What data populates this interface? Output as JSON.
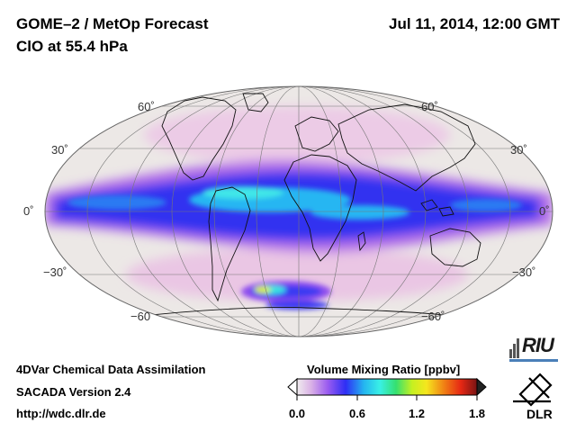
{
  "header": {
    "title": "GOME–2 / MetOp Forecast",
    "subtitle": "ClO at 55.4 hPa",
    "datetime": "Jul 11, 2014, 12:00 GMT"
  },
  "map": {
    "projection": "Mollweide",
    "lat_labels_left": [
      "60˚",
      "30˚",
      "0˚",
      "−30˚",
      "−60"
    ],
    "lat_labels_right": [
      "60˚",
      "30˚",
      "0˚",
      "−30˚",
      "−60˚"
    ]
  },
  "colorbar": {
    "title": "Volume Mixing Ratio [ppbv]",
    "ticks": [
      "0.0",
      "0.6",
      "1.2",
      "1.8"
    ],
    "colors": [
      "#f0ecee",
      "#d9b0e6",
      "#9b5cf0",
      "#2e2ef5",
      "#24b4f0",
      "#39f0e6",
      "#35e070",
      "#c6f020",
      "#f5e61e",
      "#f07d14",
      "#e62814",
      "#781414"
    ]
  },
  "footer": {
    "line1": "4DVar Chemical Data Assimilation",
    "line2": "SACADA Version 2.4",
    "line3": "http://wdc.dlr.de"
  },
  "logos": {
    "riu": "RIU",
    "dlr": "DLR"
  }
}
